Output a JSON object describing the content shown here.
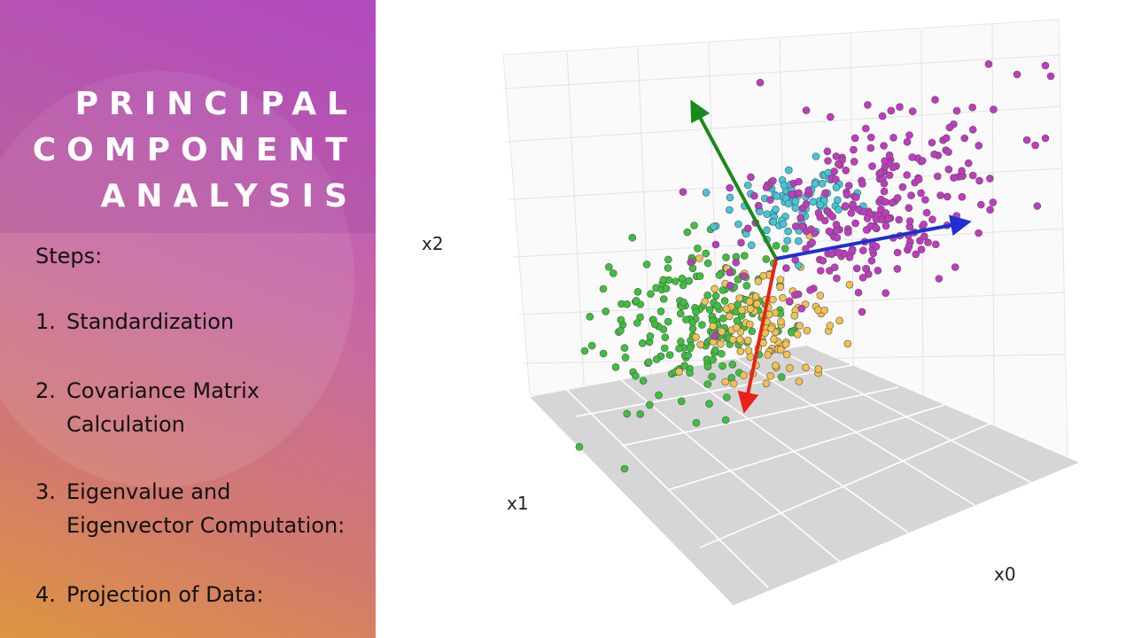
{
  "slide": {
    "title_lines": [
      "PRINCIPAL",
      "COMPONENT",
      "ANALYSIS"
    ],
    "steps_heading": "Steps:",
    "steps": [
      {
        "number": "1.",
        "lines": [
          "Standardization"
        ]
      },
      {
        "number": "2.",
        "lines": [
          "Covariance Matrix",
          "Calculation"
        ]
      },
      {
        "number": "3.",
        "lines": [
          "Eigenvalue and",
          "Eigenvector Computation:"
        ]
      },
      {
        "number": "4.",
        "lines": [
          "Projection of Data:"
        ]
      }
    ]
  },
  "figure": {
    "axis_labels": {
      "x0": "x0",
      "x1": "x1",
      "x2": "x2"
    },
    "cluster_colors": {
      "green": "#3cc13c",
      "yellow": "#f2c14e",
      "cyan": "#3ec8d8",
      "magenta": "#c239c2"
    },
    "vector_colors": {
      "green": "#1a8a1a",
      "blue": "#1f2fd1",
      "red": "#e8221a"
    }
  }
}
